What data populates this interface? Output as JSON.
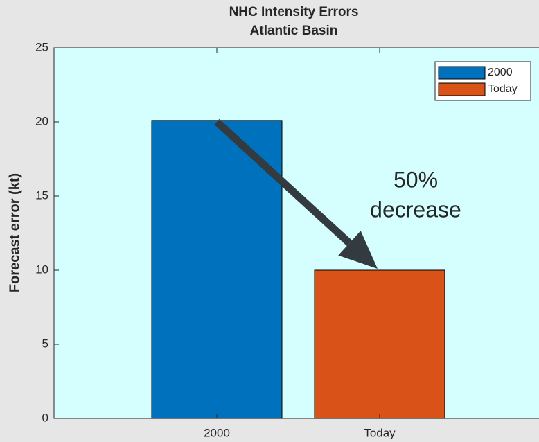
{
  "chart_data": {
    "type": "bar",
    "title": [
      "NHC Intensity Errors",
      "Atlantic Basin"
    ],
    "y_label": "Forecast error (kt)",
    "categories": [
      "2000",
      "Today"
    ],
    "series": [
      {
        "name": "2000",
        "color": "#0072bd",
        "values": [
          20.1,
          null
        ]
      },
      {
        "name": "Today",
        "color": "#d95319",
        "values": [
          null,
          10
        ]
      }
    ],
    "ylim": [
      0,
      25
    ],
    "yticks": [
      0,
      5,
      10,
      15,
      20,
      25
    ],
    "annotation": [
      "50%",
      "decrease"
    ],
    "legend": "top-right",
    "plot_background": "#d5ffff"
  }
}
